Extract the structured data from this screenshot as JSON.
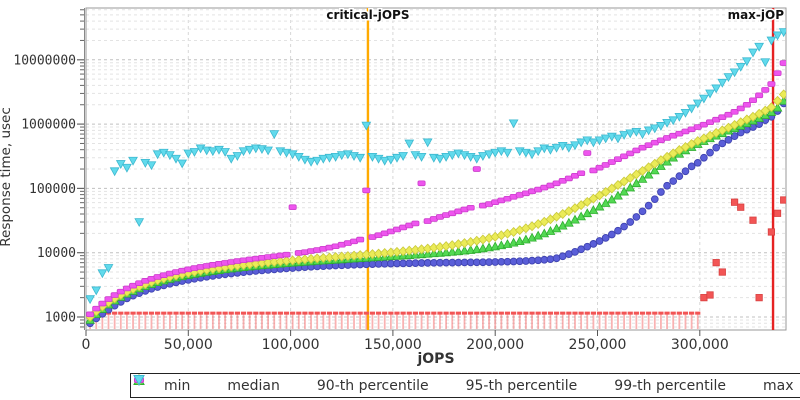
{
  "chart_data": {
    "type": "scatter",
    "title": "",
    "xlabel": "jOPS",
    "ylabel": "Response time, usec",
    "y_scale": "log",
    "xlim": [
      0,
      342000
    ],
    "ylim": [
      630,
      63000000
    ],
    "x_ticks": [
      "0",
      "50,000",
      "100,000",
      "150,000",
      "200,000",
      "250,000",
      "300,000"
    ],
    "x_tick_values": [
      0,
      50000,
      100000,
      150000,
      200000,
      250000,
      300000
    ],
    "y_ticks": [
      "1000",
      "10000",
      "100000",
      "1000000",
      "10000000"
    ],
    "y_tick_values": [
      1000,
      10000,
      100000,
      1000000,
      10000000
    ],
    "grid": "dashed",
    "legend_position": "bottom",
    "annotations": [
      {
        "label": "critical-jOPS",
        "x": 137800,
        "color": "#ffaa00",
        "align": "middle"
      },
      {
        "label": "max-jOP",
        "x": 335800,
        "color": "#e62222",
        "align": "end"
      }
    ],
    "jops": [
      2000,
      5000,
      8000,
      11000,
      14000,
      17000,
      20000,
      23000,
      26000,
      29000,
      32000,
      35000,
      38000,
      41000,
      44000,
      47000,
      50000,
      53000,
      56000,
      59000,
      62000,
      65000,
      68000,
      71000,
      74000,
      77000,
      80000,
      83000,
      86000,
      89000,
      92000,
      95000,
      98000,
      101000,
      104000,
      107000,
      110000,
      113000,
      116000,
      119000,
      122000,
      125000,
      128000,
      131000,
      134000,
      137000,
      140000,
      143000,
      146000,
      149000,
      152000,
      155000,
      158000,
      161000,
      164000,
      167000,
      170000,
      173000,
      176000,
      179000,
      182000,
      185000,
      188000,
      191000,
      194000,
      197000,
      200000,
      203000,
      206000,
      209000,
      212000,
      215000,
      218000,
      221000,
      224000,
      227000,
      230000,
      233000,
      236000,
      239000,
      242000,
      245000,
      248000,
      251000,
      254000,
      257000,
      260000,
      263000,
      266000,
      269000,
      272000,
      275000,
      278000,
      281000,
      284000,
      287000,
      290000,
      293000,
      296000,
      299000,
      302000,
      305000,
      308000,
      311000,
      314000,
      317000,
      320000,
      323000,
      326000,
      329000,
      332000,
      335000,
      338000,
      341000
    ],
    "series": [
      {
        "name": "min",
        "marker": "tee-square",
        "color": "#f25555",
        "stroke": "#d84040",
        "values": [
          1050,
          1050,
          1050,
          1050,
          1050,
          1050,
          1050,
          1050,
          1050,
          1050,
          1050,
          1050,
          1050,
          1050,
          1050,
          1050,
          1050,
          1050,
          1050,
          1050,
          1050,
          1050,
          1050,
          1050,
          1050,
          1050,
          1050,
          1050,
          1050,
          1050,
          1050,
          1050,
          1050,
          1050,
          1050,
          1050,
          1050,
          1050,
          1050,
          1050,
          1050,
          1050,
          1050,
          1050,
          1050,
          1050,
          1050,
          1050,
          1050,
          1050,
          1050,
          1050,
          1050,
          1050,
          1050,
          1050,
          1050,
          1050,
          1050,
          1050,
          1050,
          1050,
          1050,
          1050,
          1050,
          1050,
          1050,
          1050,
          1050,
          1050,
          1050,
          1050,
          1050,
          1050,
          1050,
          1050,
          1050,
          1050,
          1050,
          1050,
          1050,
          1050,
          1050,
          1050,
          1050,
          1050,
          1050,
          1050,
          1050,
          1050,
          1050,
          1050,
          1050,
          1050,
          1050,
          1050,
          1050,
          1050,
          1050,
          1050,
          2000,
          2200,
          7000,
          5000,
          null,
          61000,
          51000,
          null,
          32000,
          2000,
          null,
          21000,
          41000,
          66000
        ]
      },
      {
        "name": "median",
        "marker": "circle",
        "color": "#5a5ed8",
        "stroke": "#3f43b0",
        "values": [
          800,
          950,
          1120,
          1300,
          1500,
          1720,
          1950,
          2150,
          2350,
          2550,
          2750,
          2930,
          3100,
          3280,
          3450,
          3620,
          3780,
          3930,
          4080,
          4220,
          4360,
          4490,
          4620,
          4740,
          4860,
          4980,
          5090,
          5200,
          5300,
          5400,
          5500,
          5600,
          5690,
          5780,
          5870,
          5950,
          6030,
          6110,
          6180,
          6250,
          6320,
          6380,
          6440,
          6500,
          6550,
          6600,
          6650,
          6690,
          6730,
          6770,
          6800,
          6830,
          6860,
          6890,
          6920,
          6940,
          6960,
          6980,
          7000,
          7010,
          7030,
          7050,
          7070,
          7090,
          7110,
          7140,
          7170,
          7210,
          7250,
          7300,
          7360,
          7430,
          7520,
          7630,
          7760,
          7920,
          8200,
          8800,
          9500,
          10300,
          11300,
          12400,
          13700,
          15200,
          17000,
          19200,
          22000,
          25500,
          30000,
          36000,
          44000,
          54000,
          68000,
          88000,
          110000,
          130000,
          155000,
          185000,
          220000,
          250000,
          300000,
          360000,
          430000,
          500000,
          570000,
          650000,
          740000,
          820000,
          900000,
          1000000,
          1150000,
          1300000,
          1600000,
          2100000
        ]
      },
      {
        "name": "90-th percentile",
        "marker": "triangle-up",
        "color": "#53d953",
        "stroke": "#2fae2f",
        "values": [
          900,
          1110,
          1330,
          1560,
          1800,
          2050,
          2300,
          2540,
          2780,
          3020,
          3250,
          3470,
          3690,
          3900,
          4100,
          4300,
          4490,
          4670,
          4850,
          5020,
          5190,
          5350,
          5510,
          5660,
          5810,
          5950,
          6090,
          6230,
          6360,
          6490,
          6620,
          6740,
          6860,
          6980,
          7100,
          7210,
          7320,
          7430,
          7540,
          7650,
          7760,
          7870,
          7980,
          8090,
          8200,
          8310,
          8420,
          8540,
          8660,
          8780,
          8900,
          9030,
          9160,
          9300,
          9450,
          9600,
          9760,
          9930,
          10100,
          10300,
          10500,
          10750,
          11000,
          11300,
          11650,
          12050,
          12500,
          13000,
          13600,
          14300,
          15100,
          16000,
          17100,
          18400,
          19900,
          21700,
          23800,
          26300,
          29200,
          32600,
          36600,
          41000,
          46000,
          52000,
          59000,
          67000,
          77000,
          89000,
          103000,
          120000,
          140000,
          163000,
          190000,
          222000,
          260000,
          300000,
          345000,
          390000,
          440000,
          490000,
          545000,
          600000,
          660000,
          720000,
          790000,
          860000,
          940000,
          1030000,
          1130000,
          1240000,
          1380000,
          1540000,
          1800000,
          2300000
        ]
      },
      {
        "name": "95-th percentile",
        "marker": "diamond",
        "color": "#ebeb58",
        "stroke": "#c9c93a",
        "values": [
          1000,
          1220,
          1450,
          1690,
          1940,
          2200,
          2460,
          2720,
          2980,
          3230,
          3480,
          3720,
          3950,
          4180,
          4400,
          4610,
          4820,
          5020,
          5210,
          5400,
          5580,
          5760,
          5930,
          6100,
          6260,
          6420,
          6580,
          6730,
          6880,
          7030,
          7170,
          7310,
          7450,
          7590,
          7730,
          7870,
          8010,
          8150,
          8290,
          8430,
          8570,
          8720,
          8870,
          9020,
          9180,
          9340,
          9510,
          9690,
          9880,
          10080,
          10290,
          10520,
          10760,
          11020,
          11300,
          11600,
          11930,
          12290,
          12680,
          13110,
          13580,
          14100,
          14680,
          15320,
          16030,
          16820,
          17700,
          18680,
          19780,
          21000,
          22400,
          24000,
          25800,
          27900,
          30300,
          33100,
          36300,
          40000,
          44300,
          49300,
          55000,
          61600,
          69200,
          78000,
          88000,
          99500,
          113000,
          128000,
          145000,
          165000,
          187000,
          213000,
          242000,
          275000,
          310000,
          350000,
          395000,
          440000,
          490000,
          545000,
          600000,
          660000,
          730000,
          800000,
          880000,
          970000,
          1070000,
          1180000,
          1300000,
          1450000,
          1620000,
          1830000,
          2300000,
          2900000
        ]
      },
      {
        "name": "99-th percentile",
        "marker": "hbar",
        "color": "#ee55ee",
        "stroke": "#cc3ecc",
        "values": [
          1100,
          1350,
          1620,
          1900,
          2190,
          2480,
          2780,
          3070,
          3360,
          3650,
          3930,
          4200,
          4470,
          4740,
          5000,
          5260,
          5510,
          5760,
          6000,
          6240,
          6480,
          6710,
          6940,
          7170,
          7400,
          7630,
          7860,
          8090,
          8330,
          8570,
          8810,
          9060,
          9320,
          51000,
          9900,
          10200,
          10600,
          11000,
          11500,
          12000,
          12600,
          13300,
          14100,
          15000,
          16000,
          93000,
          17500,
          18700,
          20000,
          21400,
          23000,
          24700,
          26500,
          28500,
          120000,
          31000,
          33500,
          36000,
          38500,
          41000,
          44000,
          47000,
          50000,
          200000,
          54000,
          57000,
          61000,
          65000,
          69000,
          74000,
          79000,
          84000,
          90000,
          96000,
          103000,
          111000,
          120000,
          131000,
          143000,
          157000,
          172000,
          355000,
          190000,
          210000,
          232000,
          257000,
          285000,
          316000,
          350000,
          390000,
          430000,
          470000,
          515000,
          560000,
          610000,
          660000,
          710000,
          770000,
          830000,
          900000,
          980000,
          1070000,
          1170000,
          1280000,
          1400000,
          1550000,
          1750000,
          2000000,
          2350000,
          2800000,
          3400000,
          4200000,
          6200000,
          8900000
        ]
      },
      {
        "name": "max",
        "marker": "triangle-down",
        "color": "#61daec",
        "stroke": "#3cb8cf",
        "values": [
          1900,
          2600,
          4800,
          5800,
          185000,
          240000,
          210000,
          270000,
          30000,
          250000,
          230000,
          340000,
          360000,
          330000,
          290000,
          245000,
          350000,
          370000,
          420000,
          390000,
          380000,
          400000,
          370000,
          290000,
          320000,
          380000,
          400000,
          420000,
          410000,
          390000,
          700000,
          380000,
          360000,
          340000,
          310000,
          280000,
          260000,
          270000,
          290000,
          300000,
          310000,
          330000,
          340000,
          320000,
          300000,
          950000,
          310000,
          290000,
          270000,
          280000,
          300000,
          320000,
          500000,
          330000,
          310000,
          520000,
          300000,
          290000,
          310000,
          330000,
          350000,
          330000,
          310000,
          290000,
          320000,
          340000,
          360000,
          380000,
          360000,
          1030000,
          380000,
          360000,
          340000,
          380000,
          420000,
          400000,
          430000,
          460000,
          430000,
          470000,
          520000,
          560000,
          520000,
          560000,
          600000,
          640000,
          600000,
          680000,
          720000,
          760000,
          700000,
          800000,
          860000,
          940000,
          1050000,
          1150000,
          1300000,
          1500000,
          1750000,
          2100000,
          2500000,
          3000000,
          3600000,
          4400000,
          5400000,
          6400000,
          7800000,
          9500000,
          13000000,
          16000000,
          9200000,
          20000000,
          24000000,
          27000000
        ]
      }
    ]
  }
}
